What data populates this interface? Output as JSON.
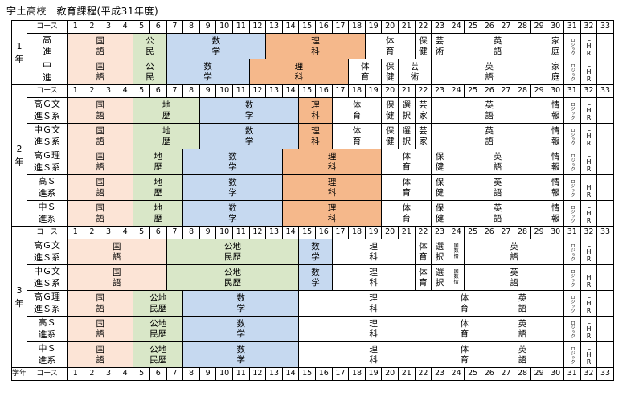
{
  "title": "宇土高校　教育課程(平成31年度)",
  "header_label_course": "コース",
  "footer_label_grade": "学年",
  "footer_label_course": "コース",
  "periods": [
    "1",
    "2",
    "3",
    "4",
    "5",
    "6",
    "7",
    "8",
    "9",
    "10",
    "11",
    "12",
    "13",
    "14",
    "15",
    "16",
    "17",
    "18",
    "19",
    "20",
    "21",
    "22",
    "23",
    "24",
    "25",
    "26",
    "27",
    "28",
    "29",
    "30",
    "31",
    "32",
    "33"
  ],
  "colors": {
    "pink": "#fce4d6",
    "green": "#d9e7c8",
    "blue": "#c6d9f0",
    "orange": "#f5b88b"
  },
  "grades": [
    {
      "label": "1\n年",
      "rows": [
        {
          "course": "高\n進",
          "subjects": [
            {
              "s": 1,
              "e": 4,
              "t": "国\n語",
              "c": "pink"
            },
            {
              "s": 5,
              "e": 6,
              "t": "公\n民",
              "c": "green"
            },
            {
              "s": 7,
              "e": 12,
              "t": "数\n学",
              "c": "blue"
            },
            {
              "s": 13,
              "e": 18,
              "t": "理\n科",
              "c": "orange"
            },
            {
              "s": 19,
              "e": 21,
              "t": "体\n育"
            },
            {
              "s": 22,
              "e": 22,
              "t": "保\n健"
            },
            {
              "s": 23,
              "e": 23,
              "t": "芸\n術"
            },
            {
              "s": 24,
              "e": 29,
              "t": "英\n語"
            },
            {
              "s": 30,
              "e": 30,
              "t": "家\n庭"
            },
            {
              "s": 31,
              "e": 31,
              "t": "ロジック",
              "v": true
            },
            {
              "s": 32,
              "e": 32,
              "t": "LHR",
              "v": true
            }
          ]
        },
        {
          "course": "中\n進",
          "subjects": [
            {
              "s": 1,
              "e": 4,
              "t": "国\n語",
              "c": "pink"
            },
            {
              "s": 5,
              "e": 6,
              "t": "公\n民",
              "c": "green"
            },
            {
              "s": 7,
              "e": 11,
              "t": "数\n学",
              "c": "blue"
            },
            {
              "s": 12,
              "e": 17,
              "t": "理\n科",
              "c": "orange"
            },
            {
              "s": 18,
              "e": 19,
              "t": "体\n育"
            },
            {
              "s": 20,
              "e": 20,
              "t": "保\n健"
            },
            {
              "s": 21,
              "e": 22,
              "t": "芸\n術"
            },
            {
              "s": 23,
              "e": 29,
              "t": "英\n語"
            },
            {
              "s": 30,
              "e": 30,
              "t": "家\n庭"
            },
            {
              "s": 31,
              "e": 31,
              "t": "ロジック",
              "v": true
            },
            {
              "s": 32,
              "e": 32,
              "t": "LHR",
              "v": true
            }
          ]
        }
      ]
    },
    {
      "label": "2\n年",
      "rows": [
        {
          "course": "高Ｇ文\n進Ｓ系",
          "subjects": [
            {
              "s": 1,
              "e": 4,
              "t": "国\n語",
              "c": "pink"
            },
            {
              "s": 5,
              "e": 8,
              "t": "地\n歴",
              "c": "green"
            },
            {
              "s": 9,
              "e": 14,
              "t": "数\n学",
              "c": "blue"
            },
            {
              "s": 15,
              "e": 16,
              "t": "理\n科",
              "c": "orange"
            },
            {
              "s": 17,
              "e": 19,
              "t": "体\n育"
            },
            {
              "s": 20,
              "e": 20,
              "t": "保\n健"
            },
            {
              "s": 21,
              "e": 21,
              "t": "選\n択"
            },
            {
              "s": 22,
              "e": 22,
              "t": "芸\n家"
            },
            {
              "s": 23,
              "e": 29,
              "t": "英\n語"
            },
            {
              "s": 30,
              "e": 30,
              "t": "情\n報"
            },
            {
              "s": 31,
              "e": 31,
              "t": "ロジック",
              "v": true
            },
            {
              "s": 32,
              "e": 32,
              "t": "LHR",
              "v": true
            }
          ]
        },
        {
          "course": "中Ｇ文\n進Ｓ系",
          "subjects": [
            {
              "s": 1,
              "e": 4,
              "t": "国\n語",
              "c": "pink"
            },
            {
              "s": 5,
              "e": 8,
              "t": "地\n歴",
              "c": "green"
            },
            {
              "s": 9,
              "e": 14,
              "t": "数\n学",
              "c": "blue"
            },
            {
              "s": 15,
              "e": 16,
              "t": "理\n科",
              "c": "orange"
            },
            {
              "s": 17,
              "e": 19,
              "t": "体\n育"
            },
            {
              "s": 20,
              "e": 20,
              "t": "保\n健"
            },
            {
              "s": 21,
              "e": 21,
              "t": "選\n択"
            },
            {
              "s": 22,
              "e": 22,
              "t": "芸\n家"
            },
            {
              "s": 23,
              "e": 29,
              "t": "英\n語"
            },
            {
              "s": 30,
              "e": 30,
              "t": "情\n報"
            },
            {
              "s": 31,
              "e": 31,
              "t": "ロジック",
              "v": true
            },
            {
              "s": 32,
              "e": 32,
              "t": "LHR",
              "v": true
            }
          ]
        },
        {
          "course": "高Ｇ理\n進Ｓ系",
          "subjects": [
            {
              "s": 1,
              "e": 4,
              "t": "国\n語",
              "c": "pink"
            },
            {
              "s": 5,
              "e": 7,
              "t": "地\n歴",
              "c": "green"
            },
            {
              "s": 8,
              "e": 13,
              "t": "数\n学",
              "c": "blue"
            },
            {
              "s": 14,
              "e": 19,
              "t": "理\n科",
              "c": "orange"
            },
            {
              "s": 20,
              "e": 22,
              "t": "体\n育"
            },
            {
              "s": 23,
              "e": 23,
              "t": "保\n健"
            },
            {
              "s": 24,
              "e": 29,
              "t": "英\n語"
            },
            {
              "s": 30,
              "e": 30,
              "t": "情\n報"
            },
            {
              "s": 31,
              "e": 31,
              "t": "ロジック",
              "v": true
            },
            {
              "s": 32,
              "e": 32,
              "t": "LHR",
              "v": true
            }
          ]
        },
        {
          "course": "高Ｓ\n進系",
          "subjects": [
            {
              "s": 1,
              "e": 4,
              "t": "国\n語",
              "c": "pink"
            },
            {
              "s": 5,
              "e": 7,
              "t": "地\n歴",
              "c": "green"
            },
            {
              "s": 8,
              "e": 13,
              "t": "数\n学",
              "c": "blue"
            },
            {
              "s": 14,
              "e": 19,
              "t": "理\n科",
              "c": "orange"
            },
            {
              "s": 20,
              "e": 22,
              "t": "体\n育"
            },
            {
              "s": 23,
              "e": 23,
              "t": "保\n健"
            },
            {
              "s": 24,
              "e": 29,
              "t": "英\n語"
            },
            {
              "s": 30,
              "e": 30,
              "t": "情\n報"
            },
            {
              "s": 31,
              "e": 31,
              "t": "ロジック",
              "v": true
            },
            {
              "s": 32,
              "e": 32,
              "t": "LHR",
              "v": true
            }
          ]
        },
        {
          "course": "中Ｓ\n進系",
          "subjects": [
            {
              "s": 1,
              "e": 4,
              "t": "国\n語",
              "c": "pink"
            },
            {
              "s": 5,
              "e": 7,
              "t": "地\n歴",
              "c": "green"
            },
            {
              "s": 8,
              "e": 13,
              "t": "数\n学",
              "c": "blue"
            },
            {
              "s": 14,
              "e": 19,
              "t": "理\n科",
              "c": "orange"
            },
            {
              "s": 20,
              "e": 22,
              "t": "体\n育"
            },
            {
              "s": 23,
              "e": 23,
              "t": "保\n健"
            },
            {
              "s": 24,
              "e": 29,
              "t": "英\n語"
            },
            {
              "s": 30,
              "e": 30,
              "t": "情\n報"
            },
            {
              "s": 31,
              "e": 31,
              "t": "ロジック",
              "v": true
            },
            {
              "s": 32,
              "e": 32,
              "t": "LHR",
              "v": true
            }
          ]
        }
      ]
    },
    {
      "label": "3\n年",
      "rows": [
        {
          "course": "高Ｇ文\n進Ｓ系",
          "subjects": [
            {
              "s": 1,
              "e": 6,
              "t": "国\n語",
              "c": "pink"
            },
            {
              "s": 7,
              "e": 14,
              "t": "公地\n民歴",
              "c": "green"
            },
            {
              "s": 15,
              "e": 16,
              "t": "数\n学",
              "c": "blue"
            },
            {
              "s": 17,
              "e": 21,
              "t": "理\n科"
            },
            {
              "s": 22,
              "e": 22,
              "t": "体\n育"
            },
            {
              "s": 23,
              "e": 23,
              "t": "選\n択"
            },
            {
              "s": 24,
              "e": 24,
              "t": "国\n数\n情",
              "tiny": true
            },
            {
              "s": 25,
              "e": 30,
              "t": "英\n語"
            },
            {
              "s": 31,
              "e": 31,
              "t": "ロジック",
              "v": true
            },
            {
              "s": 32,
              "e": 32,
              "t": "LHR",
              "v": true
            }
          ]
        },
        {
          "course": "中Ｇ文\n進Ｓ系",
          "subjects": [
            {
              "s": 1,
              "e": 6,
              "t": "国\n語",
              "c": "pink"
            },
            {
              "s": 7,
              "e": 14,
              "t": "公地\n民歴",
              "c": "green"
            },
            {
              "s": 15,
              "e": 16,
              "t": "数\n学",
              "c": "blue"
            },
            {
              "s": 17,
              "e": 21,
              "t": "理\n科"
            },
            {
              "s": 22,
              "e": 22,
              "t": "体\n育"
            },
            {
              "s": 23,
              "e": 23,
              "t": "選\n択"
            },
            {
              "s": 24,
              "e": 24,
              "t": "国\n数\n情",
              "tiny": true
            },
            {
              "s": 25,
              "e": 30,
              "t": "英\n語"
            },
            {
              "s": 31,
              "e": 31,
              "t": "ロジック",
              "v": true
            },
            {
              "s": 32,
              "e": 32,
              "t": "LHR",
              "v": true
            }
          ]
        },
        {
          "course": "高Ｇ理\n進Ｓ系",
          "subjects": [
            {
              "s": 1,
              "e": 4,
              "t": "国\n語",
              "c": "pink"
            },
            {
              "s": 5,
              "e": 7,
              "t": "公地\n民歴",
              "c": "green"
            },
            {
              "s": 8,
              "e": 14,
              "t": "数\n学",
              "c": "blue"
            },
            {
              "s": 15,
              "e": 23,
              "t": "理\n科"
            },
            {
              "s": 24,
              "e": 25,
              "t": "体\n育"
            },
            {
              "s": 26,
              "e": 30,
              "t": "英\n語"
            },
            {
              "s": 31,
              "e": 31,
              "t": "ロジック",
              "v": true
            },
            {
              "s": 32,
              "e": 32,
              "t": "LHR",
              "v": true
            }
          ]
        },
        {
          "course": "高Ｓ\n進系",
          "subjects": [
            {
              "s": 1,
              "e": 4,
              "t": "国\n語",
              "c": "pink"
            },
            {
              "s": 5,
              "e": 7,
              "t": "公地\n民歴",
              "c": "green"
            },
            {
              "s": 8,
              "e": 14,
              "t": "数\n学",
              "c": "blue"
            },
            {
              "s": 15,
              "e": 23,
              "t": "理\n科"
            },
            {
              "s": 24,
              "e": 25,
              "t": "体\n育"
            },
            {
              "s": 26,
              "e": 30,
              "t": "英\n語"
            },
            {
              "s": 31,
              "e": 31,
              "t": "ロジック",
              "v": true
            },
            {
              "s": 32,
              "e": 32,
              "t": "LHR",
              "v": true
            }
          ]
        },
        {
          "course": "中Ｓ\n進系",
          "subjects": [
            {
              "s": 1,
              "e": 4,
              "t": "国\n語",
              "c": "pink"
            },
            {
              "s": 5,
              "e": 7,
              "t": "公地\n民歴",
              "c": "green"
            },
            {
              "s": 8,
              "e": 14,
              "t": "数\n学",
              "c": "blue"
            },
            {
              "s": 15,
              "e": 23,
              "t": "理\n科"
            },
            {
              "s": 24,
              "e": 25,
              "t": "体\n育"
            },
            {
              "s": 26,
              "e": 30,
              "t": "英\n語"
            },
            {
              "s": 31,
              "e": 31,
              "t": "ロジック",
              "v": true
            },
            {
              "s": 32,
              "e": 32,
              "t": "LHR",
              "v": true
            }
          ]
        }
      ]
    }
  ]
}
